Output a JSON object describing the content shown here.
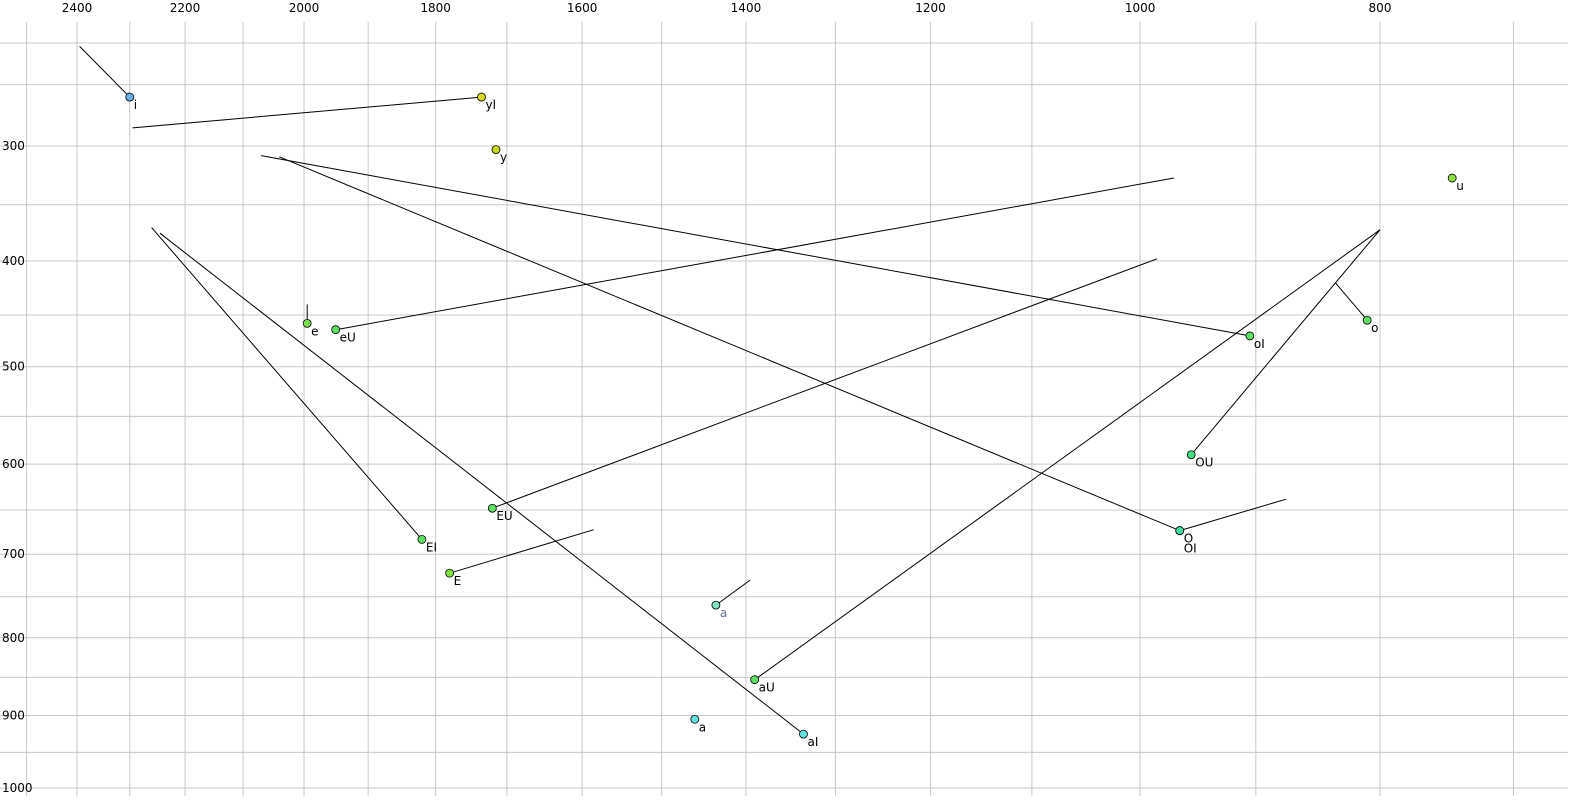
{
  "chart_data": {
    "type": "scatter",
    "title": "",
    "xlabel": "",
    "ylabel": "",
    "x_axis": {
      "quantity": "F2 (Hz)",
      "reversed": true,
      "scale": "bark",
      "ticks": [
        2400,
        2200,
        2000,
        1800,
        1600,
        1400,
        1200,
        1000,
        800
      ]
    },
    "y_axis": {
      "quantity": "F1 (Hz)",
      "reversed": true,
      "scale": "bark",
      "ticks": [
        300,
        400,
        500,
        600,
        700,
        800,
        900,
        1000
      ]
    },
    "grid": true,
    "legend": "none",
    "points": [
      {
        "label": "i",
        "f2": 2300,
        "f1": 260,
        "color": "#6ab0e8",
        "trail": [
          [
            2395,
            220
          ],
          [
            2300,
            260
          ]
        ]
      },
      {
        "label": "yl",
        "f2": 1735,
        "f1": 260,
        "color": "#d8d820",
        "trail": [
          [
            1735,
            260
          ],
          [
            2295,
            285
          ]
        ]
      },
      {
        "label": "y",
        "f2": 1715,
        "f1": 303,
        "color": "#c8d820"
      },
      {
        "label": "u",
        "f2": 745,
        "f1": 327,
        "color": "#8ce040"
      },
      {
        "label": "e",
        "f2": 1995,
        "f1": 458,
        "color": "#7ce050",
        "trail": [
          [
            1995,
            440
          ],
          [
            1995,
            458
          ]
        ]
      },
      {
        "label": "eU",
        "f2": 1950,
        "f1": 464,
        "color": "#60e060",
        "trail": [
          [
            1950,
            464
          ],
          [
            970,
            327
          ]
        ]
      },
      {
        "label": "oI",
        "f2": 905,
        "f1": 470,
        "color": "#60e060",
        "trail": [
          [
            905,
            470
          ],
          [
            2070,
            308
          ]
        ]
      },
      {
        "label": "o",
        "f2": 810,
        "f1": 455,
        "color": "#60e060",
        "trail": [
          [
            810,
            455
          ],
          [
            835,
            420
          ]
        ]
      },
      {
        "label": "OU",
        "f2": 955,
        "f1": 590,
        "color": "#40e080",
        "trail": [
          [
            955,
            590
          ],
          [
            800,
            372
          ]
        ]
      },
      {
        "label": "EU",
        "f2": 1720,
        "f1": 648,
        "color": "#60e060",
        "trail": [
          [
            1720,
            648
          ],
          [
            985,
            398
          ]
        ]
      },
      {
        "label": "O",
        "f2": 965,
        "f1": 673,
        "color": "#40e0a0",
        "trail": [
          [
            965,
            673
          ],
          [
            2040,
            309
          ]
        ]
      },
      {
        "label": "OI",
        "f2": 965,
        "f1": 673,
        "color": "#40e0a0",
        "trail": [
          [
            965,
            673
          ],
          [
            875,
            638
          ]
        ]
      },
      {
        "label": "EI",
        "f2": 1820,
        "f1": 683,
        "color": "#60e060",
        "trail": [
          [
            1820,
            683
          ],
          [
            2260,
            370
          ]
        ]
      },
      {
        "label": "E",
        "f2": 1780,
        "f1": 722,
        "color": "#80e040",
        "trail": [
          [
            1780,
            722
          ],
          [
            1585,
            672
          ]
        ]
      },
      {
        "label": "a",
        "f2": 1435,
        "f1": 760,
        "color": "#80e0c0",
        "label_color": "#607090",
        "trail": [
          [
            1435,
            760
          ],
          [
            1395,
            730
          ]
        ]
      },
      {
        "label": "aU",
        "f2": 1390,
        "f1": 853,
        "color": "#60e060",
        "trail": [
          [
            1390,
            853
          ],
          [
            800,
            372
          ]
        ]
      },
      {
        "label": "a",
        "f2": 1460,
        "f1": 905,
        "color": "#60e0e0"
      },
      {
        "label": "aI",
        "f2": 1335,
        "f1": 925,
        "color": "#60e0e0",
        "trail": [
          [
            1335,
            925
          ],
          [
            2245,
            375
          ]
        ]
      }
    ]
  }
}
